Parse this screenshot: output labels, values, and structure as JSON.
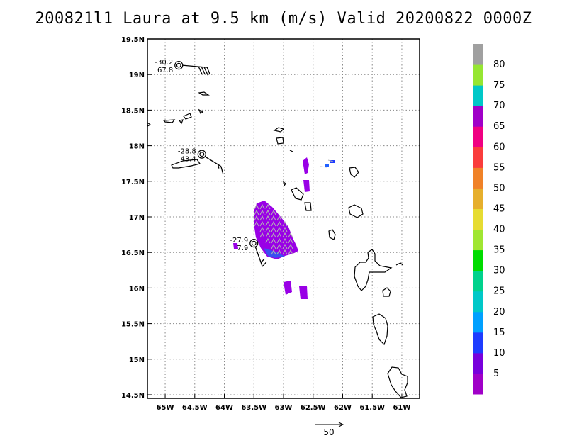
{
  "title": "200821l1 Laura at 9.5 km (m/s) Valid 20200822 0000Z",
  "map": {
    "lon_range": [
      -65.3,
      -60.7
    ],
    "lat_range": [
      14.45,
      19.5
    ],
    "lon_ticks": [
      {
        "value": -65.0,
        "label": "65W"
      },
      {
        "value": -64.5,
        "label": "64.5W"
      },
      {
        "value": -64.0,
        "label": "64W"
      },
      {
        "value": -63.5,
        "label": "63.5W"
      },
      {
        "value": -63.0,
        "label": "63W"
      },
      {
        "value": -62.5,
        "label": "62.5W"
      },
      {
        "value": -62.0,
        "label": "62W"
      },
      {
        "value": -61.5,
        "label": "61.5W"
      },
      {
        "value": -61.0,
        "label": "61W"
      }
    ],
    "lat_ticks": [
      {
        "value": 14.5,
        "label": "14.5N"
      },
      {
        "value": 15.0,
        "label": "15N"
      },
      {
        "value": 15.5,
        "label": "15.5N"
      },
      {
        "value": 16.0,
        "label": "16N"
      },
      {
        "value": 16.5,
        "label": "16.5N"
      },
      {
        "value": 17.0,
        "label": "17N"
      },
      {
        "value": 17.5,
        "label": "17.5N"
      },
      {
        "value": 18.0,
        "label": "18N"
      },
      {
        "value": 18.5,
        "label": "18.5N"
      },
      {
        "value": 19.0,
        "label": "19N"
      },
      {
        "value": 19.5,
        "label": "19.5N"
      }
    ],
    "grid": "dotted",
    "stations": [
      {
        "lon": -64.77,
        "lat": 19.13,
        "top": "-30.2",
        "bottom": "67.8"
      },
      {
        "lon": -64.38,
        "lat": 17.88,
        "top": "-28.8",
        "bottom": "43.4"
      },
      {
        "lon": -63.5,
        "lat": 16.63,
        "top": "-27.9",
        "bottom": "7.9"
      }
    ]
  },
  "colorbar": {
    "labels": [
      "5",
      "10",
      "15",
      "20",
      "25",
      "30",
      "35",
      "40",
      "45",
      "50",
      "55",
      "60",
      "65",
      "70",
      "75",
      "80"
    ],
    "colors": [
      "#a000c8",
      "#7800dc",
      "#1e3cff",
      "#00a0ff",
      "#00c8c8",
      "#00d28c",
      "#00dc00",
      "#a0e632",
      "#e6dc32",
      "#e6af2d",
      "#f08228",
      "#fa3c3c",
      "#f00082",
      "#a000c8",
      "#00c8c8",
      "#96e632",
      "#a0a0a0"
    ]
  },
  "reference_vector": {
    "label": "50"
  }
}
